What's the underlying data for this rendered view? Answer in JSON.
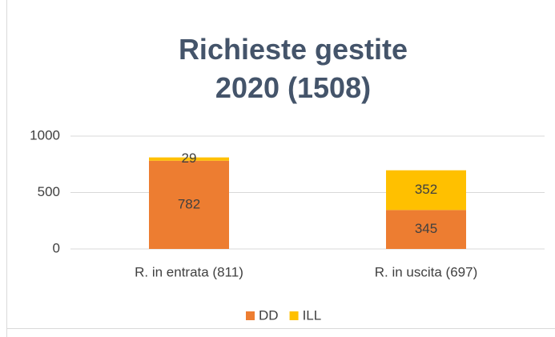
{
  "chart_data": {
    "type": "bar",
    "stacked": true,
    "title": "Richieste gestite 2020 (1508)",
    "categories": [
      "R. in entrata (811)",
      "R. in uscita (697)"
    ],
    "series": [
      {
        "name": "DD",
        "color": "#ed7d31",
        "values": [
          782,
          345
        ]
      },
      {
        "name": "ILL",
        "color": "#ffc000",
        "values": [
          29,
          352
        ]
      }
    ],
    "ylim": [
      0,
      1000
    ],
    "yticks": [
      0,
      500,
      1000
    ],
    "grid": true,
    "legend": "bottom"
  }
}
